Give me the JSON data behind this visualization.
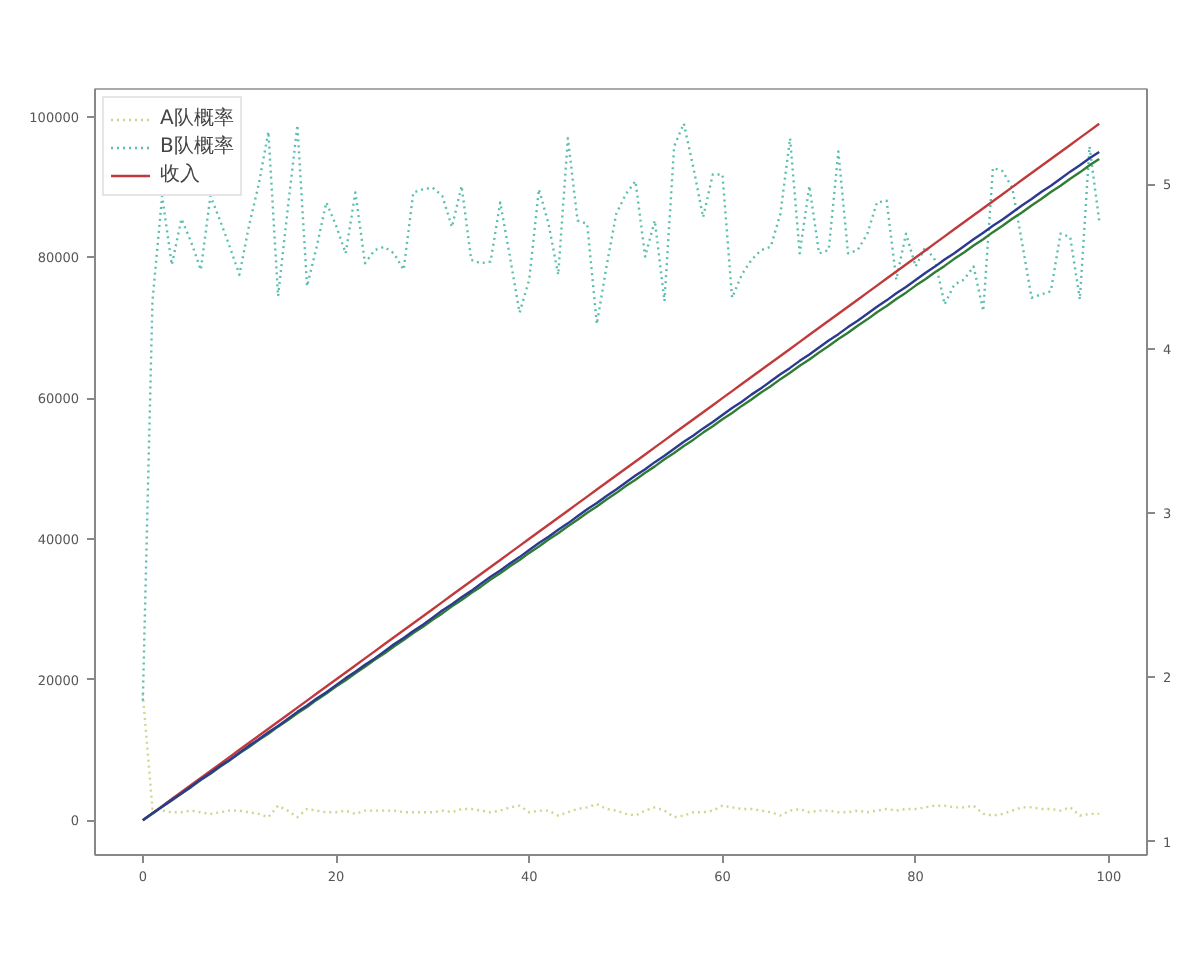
{
  "chart_data": {
    "type": "line",
    "x": [
      0,
      1,
      2,
      3,
      4,
      5,
      6,
      7,
      8,
      9,
      10,
      11,
      12,
      13,
      14,
      15,
      16,
      17,
      18,
      19,
      20,
      21,
      22,
      23,
      24,
      25,
      26,
      27,
      28,
      29,
      30,
      31,
      32,
      33,
      34,
      35,
      36,
      37,
      38,
      39,
      40,
      41,
      42,
      43,
      44,
      45,
      46,
      47,
      48,
      49,
      50,
      51,
      52,
      53,
      54,
      55,
      56,
      57,
      58,
      59,
      60,
      61,
      62,
      63,
      64,
      65,
      66,
      67,
      68,
      69,
      70,
      71,
      72,
      73,
      74,
      75,
      76,
      77,
      78,
      79,
      80,
      81,
      82,
      83,
      84,
      85,
      86,
      87,
      88,
      89,
      90,
      91,
      92,
      93,
      94,
      95,
      96,
      97,
      98,
      99
    ],
    "xlim": [
      -4.95,
      103.95
    ],
    "xticks": [
      0,
      20,
      40,
      60,
      80,
      100
    ],
    "ylim": [
      -4950,
      103950
    ],
    "yticks": [
      0,
      20000,
      40000,
      60000,
      80000,
      100000
    ],
    "y2lim": [
      0.92,
      5.58
    ],
    "y2ticks": [
      1,
      2,
      3,
      4,
      5
    ],
    "grid": false,
    "legend": "top left",
    "series": [
      {
        "name": "A队概率",
        "color": "#cfd68c",
        "axis": "y2",
        "line_style": "dotted",
        "values": [
          1.9,
          1.2,
          1.19,
          1.18,
          1.18,
          1.19,
          1.18,
          1.17,
          1.18,
          1.19,
          1.19,
          1.18,
          1.17,
          1.15,
          1.22,
          1.19,
          1.15,
          1.2,
          1.19,
          1.18,
          1.18,
          1.19,
          1.17,
          1.19,
          1.19,
          1.19,
          1.19,
          1.18,
          1.18,
          1.18,
          1.18,
          1.19,
          1.18,
          1.2,
          1.2,
          1.19,
          1.18,
          1.19,
          1.21,
          1.22,
          1.18,
          1.19,
          1.19,
          1.16,
          1.18,
          1.2,
          1.21,
          1.23,
          1.2,
          1.19,
          1.17,
          1.16,
          1.19,
          1.21,
          1.19,
          1.15,
          1.16,
          1.18,
          1.18,
          1.19,
          1.22,
          1.21,
          1.2,
          1.2,
          1.19,
          1.18,
          1.16,
          1.19,
          1.2,
          1.18,
          1.19,
          1.19,
          1.18,
          1.18,
          1.19,
          1.18,
          1.19,
          1.2,
          1.19,
          1.2,
          1.2,
          1.21,
          1.22,
          1.22,
          1.21,
          1.21,
          1.22,
          1.17,
          1.16,
          1.17,
          1.19,
          1.21,
          1.21,
          1.2,
          1.2,
          1.19,
          1.21,
          1.16,
          1.17,
          1.17
        ]
      },
      {
        "name": "B队概率",
        "color": "#5cbfae",
        "axis": "y2",
        "line_style": "dotted",
        "values": [
          1.86,
          4.29,
          4.93,
          4.51,
          4.79,
          4.65,
          4.48,
          4.93,
          4.78,
          4.62,
          4.45,
          4.75,
          5.0,
          5.32,
          4.32,
          4.85,
          5.36,
          4.38,
          4.62,
          4.89,
          4.75,
          4.58,
          4.95,
          4.52,
          4.6,
          4.62,
          4.58,
          4.48,
          4.95,
          4.97,
          4.98,
          4.93,
          4.74,
          4.99,
          4.54,
          4.52,
          4.53,
          4.89,
          4.56,
          4.22,
          4.42,
          4.97,
          4.76,
          4.45,
          5.28,
          4.78,
          4.76,
          4.15,
          4.5,
          4.82,
          4.94,
          5.02,
          4.56,
          4.78,
          4.29,
          5.23,
          5.37,
          5.1,
          4.8,
          5.06,
          5.06,
          4.31,
          4.45,
          4.54,
          4.6,
          4.62,
          4.82,
          5.28,
          4.58,
          4.99,
          4.58,
          4.6,
          5.2,
          4.58,
          4.6,
          4.7,
          4.89,
          4.9,
          4.42,
          4.7,
          4.5,
          4.62,
          4.54,
          4.27,
          4.39,
          4.42,
          4.5,
          4.23,
          5.1,
          5.08,
          4.98,
          4.65,
          4.31,
          4.33,
          4.35,
          4.7,
          4.68,
          4.3,
          5.23,
          4.78
        ]
      },
      {
        "name": "收入",
        "color": "#c0393b",
        "line_style": "solid",
        "values": [
          0,
          1000,
          2000,
          3000,
          4000,
          5000,
          6000,
          7000,
          8000,
          9000,
          10000,
          11000,
          12000,
          13000,
          14000,
          15000,
          16000,
          17000,
          18000,
          19000,
          20000,
          21000,
          22000,
          23000,
          24000,
          25000,
          26000,
          27000,
          28000,
          29000,
          30000,
          31000,
          32000,
          33000,
          34000,
          35000,
          36000,
          37000,
          38000,
          39000,
          40000,
          41000,
          42000,
          43000,
          44000,
          45000,
          46000,
          47000,
          48000,
          49000,
          50000,
          51000,
          52000,
          53000,
          54000,
          55000,
          56000,
          57000,
          58000,
          59000,
          60000,
          61000,
          62000,
          63000,
          64000,
          65000,
          66000,
          67000,
          68000,
          69000,
          70000,
          71000,
          72000,
          73000,
          74000,
          75000,
          76000,
          77000,
          78000,
          79000,
          80000,
          81000,
          82000,
          83000,
          84000,
          85000,
          86000,
          87000,
          88000,
          89000,
          90000,
          91000,
          92000,
          93000,
          94000,
          95000,
          96000,
          97000,
          98000,
          99000
        ]
      },
      {
        "color": "#2e7d32",
        "line_style": "solid",
        "values": [
          0,
          900,
          1900,
          2800,
          3800,
          4700,
          5700,
          6600,
          7600,
          8500,
          9500,
          10400,
          11400,
          12300,
          13300,
          14200,
          15200,
          16100,
          17100,
          18000,
          19000,
          19900,
          20900,
          21800,
          22800,
          23700,
          24700,
          25600,
          26600,
          27500,
          28500,
          29400,
          30400,
          31300,
          32300,
          33200,
          34200,
          35100,
          36100,
          37000,
          38000,
          38900,
          39900,
          40800,
          41800,
          42700,
          43700,
          44600,
          45600,
          46500,
          47500,
          48400,
          49400,
          50300,
          51300,
          52200,
          53200,
          54100,
          55100,
          56000,
          57000,
          57900,
          58900,
          59800,
          60800,
          61700,
          62700,
          63600,
          64600,
          65500,
          66500,
          67400,
          68400,
          69300,
          70300,
          71200,
          72200,
          73100,
          74100,
          75000,
          76000,
          76900,
          77900,
          78800,
          79800,
          80700,
          81700,
          82600,
          83600,
          84500,
          85500,
          86400,
          87400,
          88300,
          89300,
          90200,
          91200,
          92100,
          93100,
          94000
        ]
      },
      {
        "color": "#2b3990",
        "line_style": "solid",
        "values": [
          0,
          1000,
          1900,
          2900,
          3800,
          4800,
          5800,
          6700,
          7700,
          8600,
          9600,
          10600,
          11500,
          12500,
          13400,
          14400,
          15400,
          16300,
          17300,
          18200,
          19200,
          20200,
          21100,
          22100,
          23000,
          24000,
          25000,
          25900,
          26900,
          27800,
          28800,
          29800,
          30700,
          31700,
          32600,
          33600,
          34600,
          35500,
          36500,
          37400,
          38400,
          39400,
          40300,
          41300,
          42200,
          43200,
          44200,
          45100,
          46100,
          47000,
          48000,
          49000,
          49900,
          50900,
          51800,
          52800,
          53800,
          54700,
          55700,
          56600,
          57600,
          58600,
          59500,
          60500,
          61400,
          62400,
          63400,
          64300,
          65300,
          66200,
          67200,
          68200,
          69100,
          70100,
          71000,
          72000,
          73000,
          73900,
          74900,
          75800,
          76800,
          77800,
          78700,
          79700,
          80600,
          81600,
          82600,
          83500,
          84500,
          85400,
          86400,
          87400,
          88300,
          89300,
          90200,
          91200,
          92200,
          93100,
          94100,
          95000
        ]
      }
    ]
  }
}
